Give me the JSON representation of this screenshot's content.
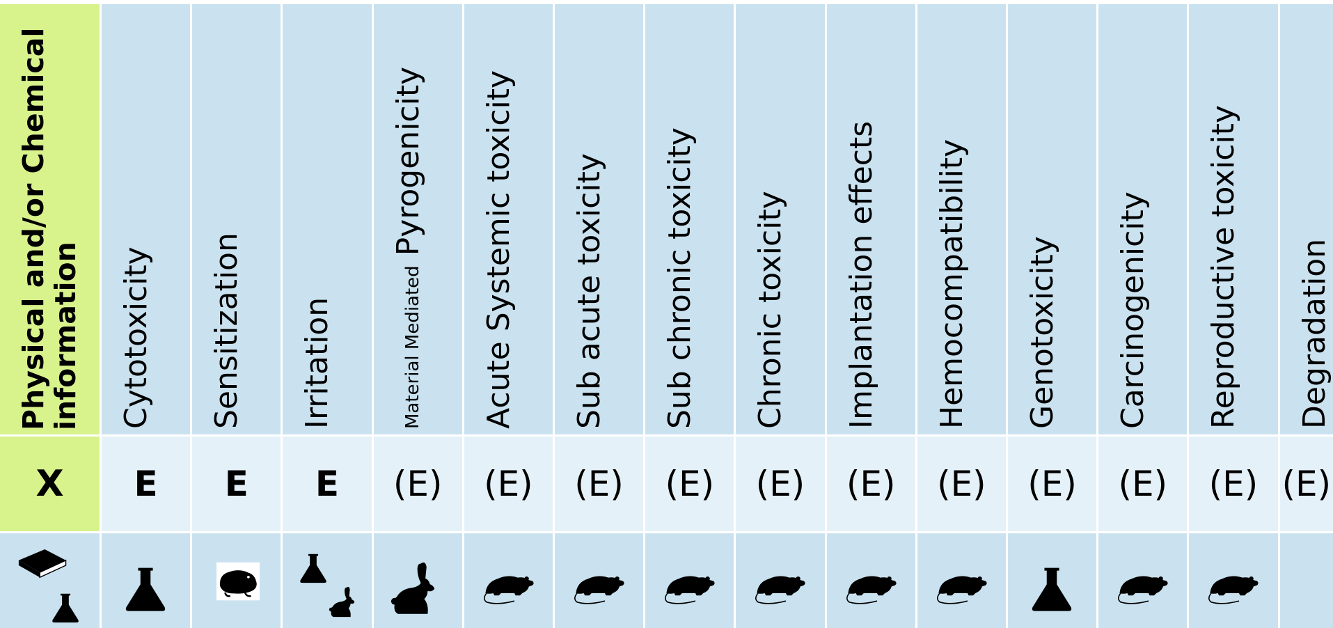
{
  "first_column": {
    "header_line1": "Physical and/or Chemical",
    "header_line2": "information",
    "mark": "X",
    "icons": [
      "book-icon",
      "flask-icon"
    ]
  },
  "columns": [
    {
      "label": "Cytotoxicity",
      "mark": "E",
      "bold": true,
      "icons": [
        "flask-icon"
      ]
    },
    {
      "label": "Sensitization",
      "mark": "E",
      "bold": true,
      "icons": [
        "guinea-pig-icon"
      ]
    },
    {
      "label": "Irritation",
      "mark": "E",
      "bold": true,
      "icons": [
        "flask-icon",
        "rabbit-icon"
      ]
    },
    {
      "label_prefix": "Material Mediated",
      "label": "Pyrogenicity",
      "mark": "(E)",
      "bold": false,
      "icons": [
        "rabbit-icon"
      ]
    },
    {
      "label": "Acute Systemic toxicity",
      "mark": "(E)",
      "bold": false,
      "icons": [
        "rat-icon"
      ]
    },
    {
      "label": "Sub acute toxicity",
      "mark": "(E)",
      "bold": false,
      "icons": [
        "rat-icon"
      ]
    },
    {
      "label": "Sub chronic toxicity",
      "mark": "(E)",
      "bold": false,
      "icons": [
        "rat-icon"
      ]
    },
    {
      "label": "Chronic toxicity",
      "mark": "(E)",
      "bold": false,
      "icons": [
        "rat-icon"
      ]
    },
    {
      "label": "Implantation effects",
      "mark": "(E)",
      "bold": false,
      "icons": [
        "rat-icon"
      ]
    },
    {
      "label": "Hemocompatibility",
      "mark": "(E)",
      "bold": false,
      "icons": [
        "rat-icon"
      ]
    },
    {
      "label": "Genotoxicity",
      "mark": "(E)",
      "bold": false,
      "icons": [
        "flask-icon"
      ]
    },
    {
      "label": "Carcinogenicity",
      "mark": "(E)",
      "bold": false,
      "icons": [
        "rat-icon"
      ]
    },
    {
      "label": "Reproductive toxicity",
      "mark": "(E)",
      "bold": false,
      "icons": [
        "rat-icon"
      ]
    },
    {
      "label": "Degradation",
      "mark": "(E)",
      "bold": false,
      "icons": []
    }
  ],
  "colors": {
    "header_bg": "#cae2ef",
    "mark_row_bg": "#e5f1f8",
    "first_column_bg": "#d8f28c",
    "icon_fill": "#000000"
  }
}
